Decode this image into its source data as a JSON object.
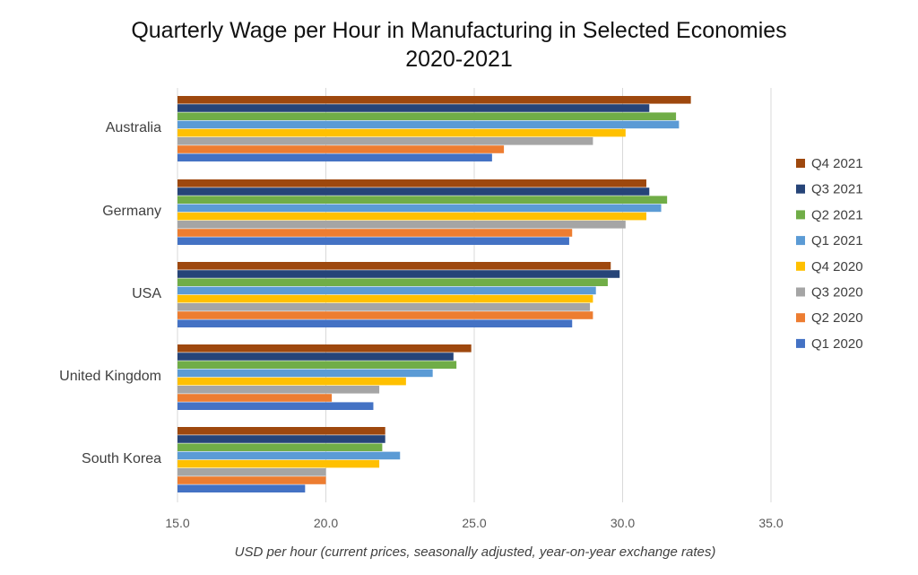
{
  "chart_data": {
    "type": "bar",
    "orientation": "horizontal",
    "title": "Quarterly Wage per Hour in Manufacturing in Selected Economies",
    "subtitle": "2020-2021",
    "xlabel": "USD per hour (current prices, seasonally adjusted, year-on-year exchange rates)",
    "ylabel": "",
    "xlim": [
      15.0,
      35.0
    ],
    "xticks": [
      "15.0",
      "20.0",
      "25.0",
      "30.0",
      "35.0"
    ],
    "xtick_values": [
      15,
      20,
      25,
      30,
      35
    ],
    "grid": true,
    "legend_position": "right",
    "categories": [
      "Australia",
      "Germany",
      "USA",
      "United Kingdom",
      "South Korea"
    ],
    "series": [
      {
        "name": "Q4 2021",
        "color": "#9E480E",
        "values": [
          32.3,
          30.8,
          29.6,
          24.9,
          22.0
        ]
      },
      {
        "name": "Q3 2021",
        "color": "#264478",
        "values": [
          30.9,
          30.9,
          29.9,
          24.3,
          22.0
        ]
      },
      {
        "name": "Q2 2021",
        "color": "#70AD47",
        "values": [
          31.8,
          31.5,
          29.5,
          24.4,
          21.9
        ]
      },
      {
        "name": "Q1 2021",
        "color": "#5B9BD5",
        "values": [
          31.9,
          31.3,
          29.1,
          23.6,
          22.5
        ]
      },
      {
        "name": "Q4 2020",
        "color": "#FFC000",
        "values": [
          30.1,
          30.8,
          29.0,
          22.7,
          21.8
        ]
      },
      {
        "name": "Q3 2020",
        "color": "#A5A5A5",
        "values": [
          29.0,
          30.1,
          28.9,
          21.8,
          20.0
        ]
      },
      {
        "name": "Q2 2020",
        "color": "#ED7D31",
        "values": [
          26.0,
          28.3,
          29.0,
          20.2,
          20.0
        ]
      },
      {
        "name": "Q1 2020",
        "color": "#4472C4",
        "values": [
          25.6,
          28.2,
          28.3,
          21.6,
          19.3
        ]
      }
    ]
  }
}
